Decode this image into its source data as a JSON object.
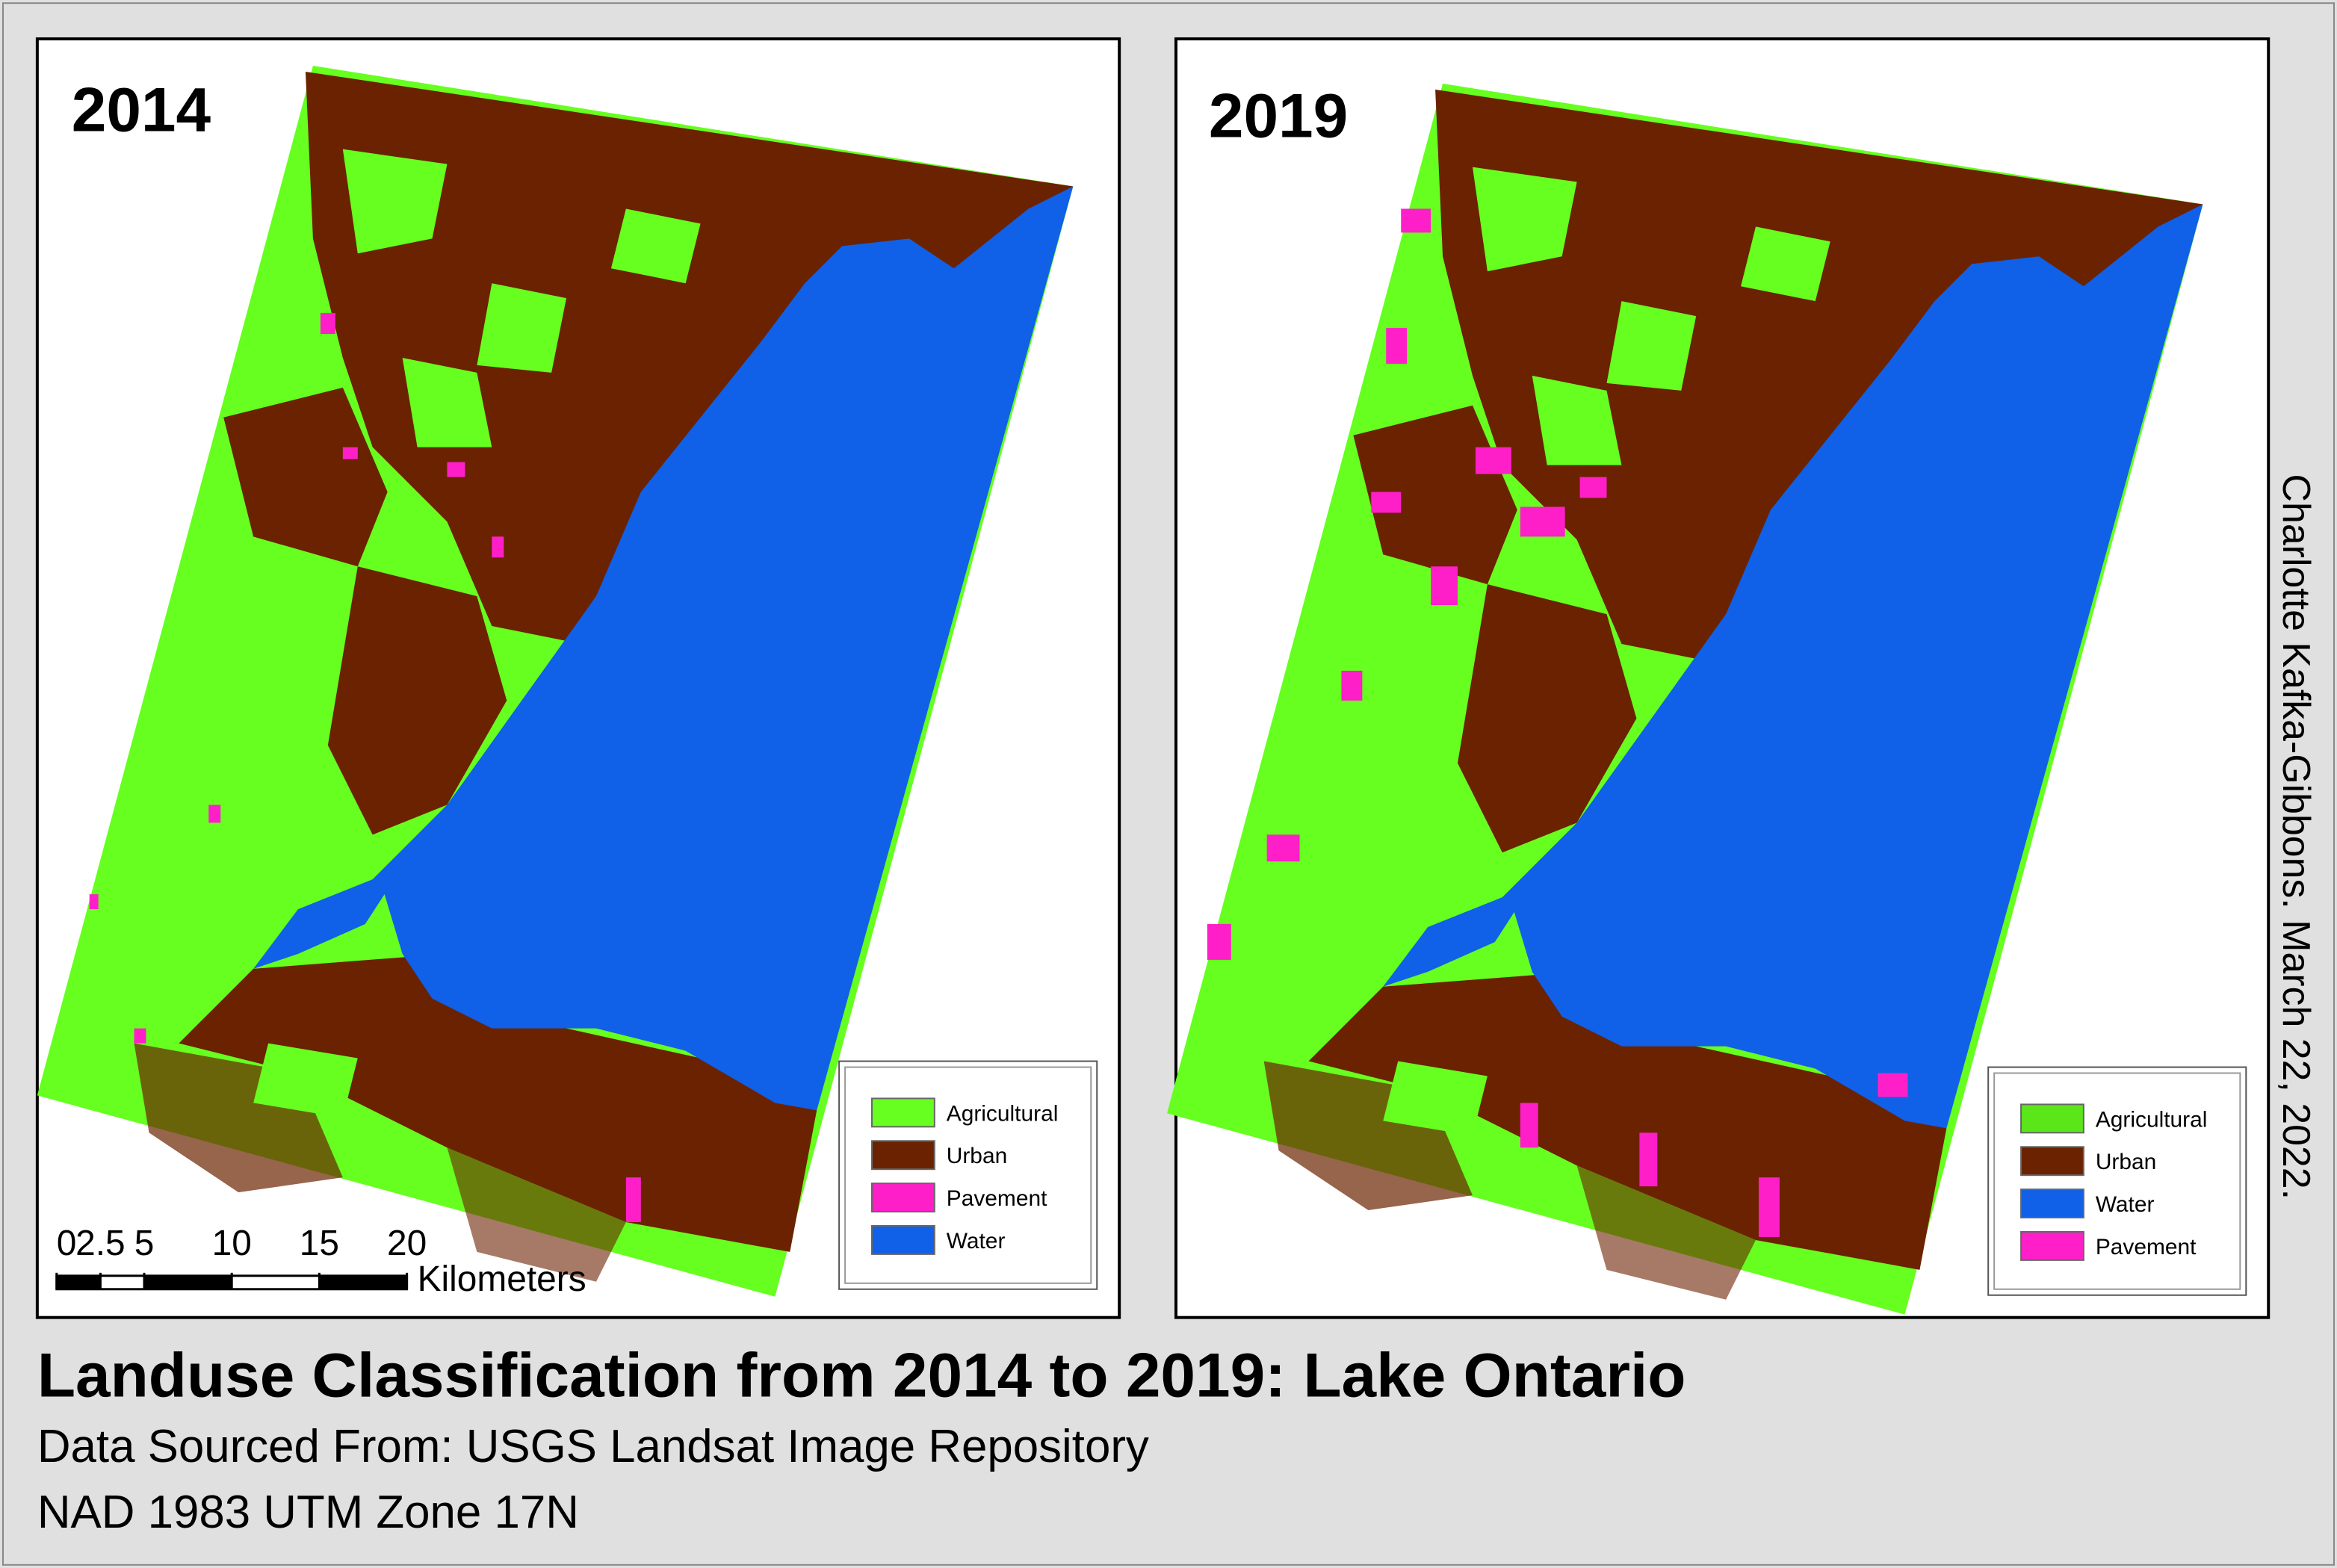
{
  "title": "Landuse Classification from 2014 to 2019: Lake Ontario",
  "subtitle": "Data Sourced From: USGS Landsat Image Repository",
  "projection": "NAD 1983 UTM Zone 17N",
  "author": "Charlotte Kafka-Gibbons. March 22, 2022.",
  "panels": [
    {
      "year": "2014",
      "legend": [
        {
          "label": "Agricultural",
          "color": "#66ff1f"
        },
        {
          "label": "Urban",
          "color": "#6b2200"
        },
        {
          "label": "Pavement",
          "color": "#ff1fc8"
        },
        {
          "label": "Water",
          "color": "#1060e8"
        }
      ],
      "scale_bar": {
        "ticks": [
          0,
          2.5,
          5,
          10,
          15,
          20
        ],
        "unit": "Kilometers"
      }
    },
    {
      "year": "2019",
      "legend": [
        {
          "label": "Agricultural",
          "color": "#5be61a"
        },
        {
          "label": "Urban",
          "color": "#6b2200"
        },
        {
          "label": "Water",
          "color": "#1060e8"
        },
        {
          "label": "Pavement",
          "color": "#ff1fc8"
        }
      ]
    }
  ]
}
